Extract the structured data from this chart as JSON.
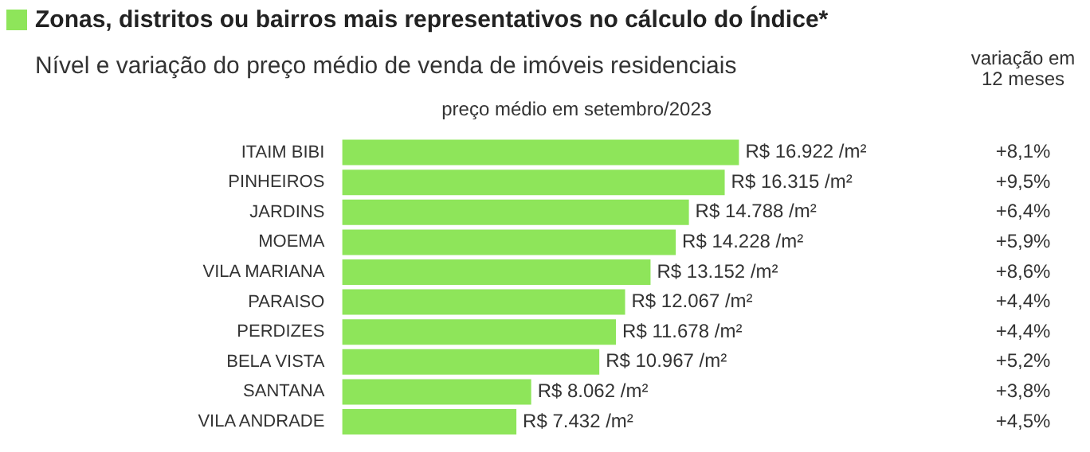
{
  "chart_data": {
    "type": "bar",
    "orientation": "horizontal",
    "title": "Zonas, distritos ou bairros mais representativos no cálculo do Índice*",
    "subtitle": "Nível e variação do preço médio de venda de imóveis residenciais",
    "xlabel": "preço médio em setembro/2023",
    "categories": [
      "ITAIM BIBI",
      "PINHEIROS",
      "JARDINS",
      "MOEMA",
      "VILA MARIANA",
      "PARAISO",
      "PERDIZES",
      "BELA VISTA",
      "SANTANA",
      "VILA ANDRADE"
    ],
    "values": [
      16922,
      16315,
      14788,
      14228,
      13152,
      12067,
      11678,
      10967,
      8062,
      7432
    ],
    "value_labels": [
      "R$ 16.922 /m²",
      "R$ 16.315 /m²",
      "R$ 14.788 /m²",
      "R$ 14.228 /m²",
      "R$ 13.152 /m²",
      "R$ 12.067 /m²",
      "R$ 11.678 /m²",
      "R$ 10.967 /m²",
      "R$ 8.062 /m²",
      "R$ 7.432 /m²"
    ],
    "color": "#8ee55a",
    "tick_labels": "y",
    "grid": false,
    "legend": false,
    "annotations": [
      "variação em 12 meses",
      "+8,1%",
      "+9,5%",
      "+6,4%",
      "+5,9%",
      "+8,6%",
      "+4,4%",
      "+4,4%",
      "+5,2%",
      "+3,8%",
      "+4,5%"
    ]
  }
}
